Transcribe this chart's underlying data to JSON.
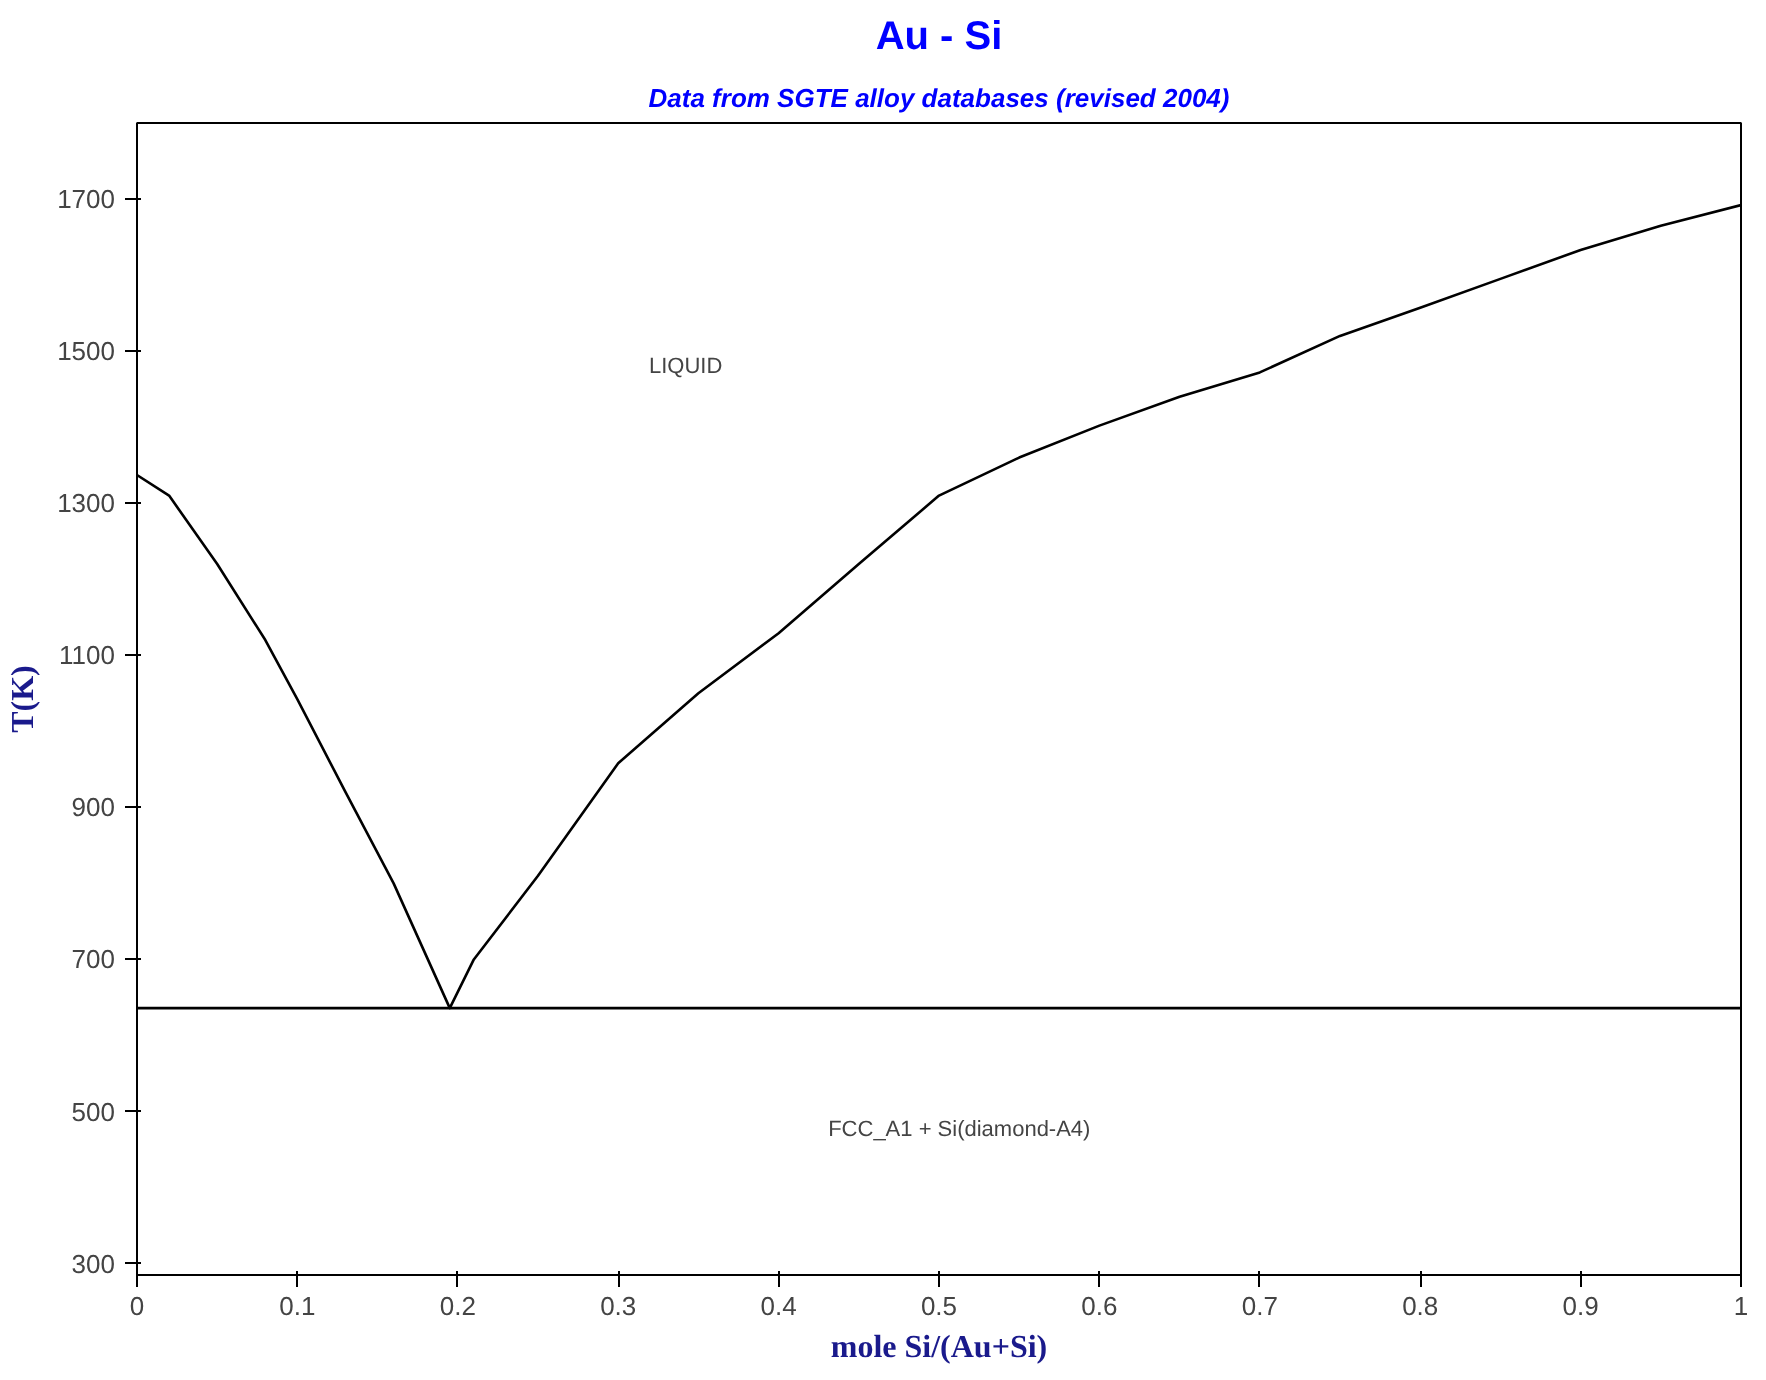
{
  "chart_data": {
    "type": "line",
    "title": "Au - Si",
    "subtitle": "Data from SGTE alloy databases (revised 2004)",
    "xlabel": "mole Si/(Au+Si)",
    "ylabel": "T(K)",
    "series": [
      {
        "color": "#000000",
        "x": [
          0,
          0.02,
          0.05,
          0.08,
          0.1,
          0.13,
          0.16,
          0.195,
          0.21,
          0.25,
          0.3,
          0.35,
          0.4,
          0.45,
          0.5,
          0.55,
          0.6,
          0.65,
          0.7,
          0.75,
          0.8,
          0.85,
          0.9,
          0.95,
          1.0
        ],
        "values": [
          1337,
          1310,
          1220,
          1120,
          1042,
          920,
          800,
          636,
          700,
          810,
          958,
          1050,
          1129,
          1220,
          1310,
          1360,
          1402,
          1440,
          1472,
          1520,
          1557,
          1595,
          1633,
          1665,
          1692
        ]
      }
    ],
    "ref_lines": [
      {
        "axis": "y",
        "value": 636,
        "label": null,
        "color": "#000000"
      }
    ],
    "annotations": [
      "LIQUID",
      "FCC_A1 + Si(diamond-A4)"
    ],
    "xlim": [
      0,
      1
    ],
    "ylim": [
      285,
      1800
    ],
    "xticks": [
      0,
      0.1,
      0.2,
      0.3,
      0.4,
      0.5,
      0.6,
      0.7,
      0.8,
      0.9,
      1
    ],
    "yticks": [
      300,
      500,
      700,
      900,
      1100,
      1300,
      1500,
      1700
    ],
    "grid": false,
    "marker": "none",
    "line_style": "solid"
  }
}
